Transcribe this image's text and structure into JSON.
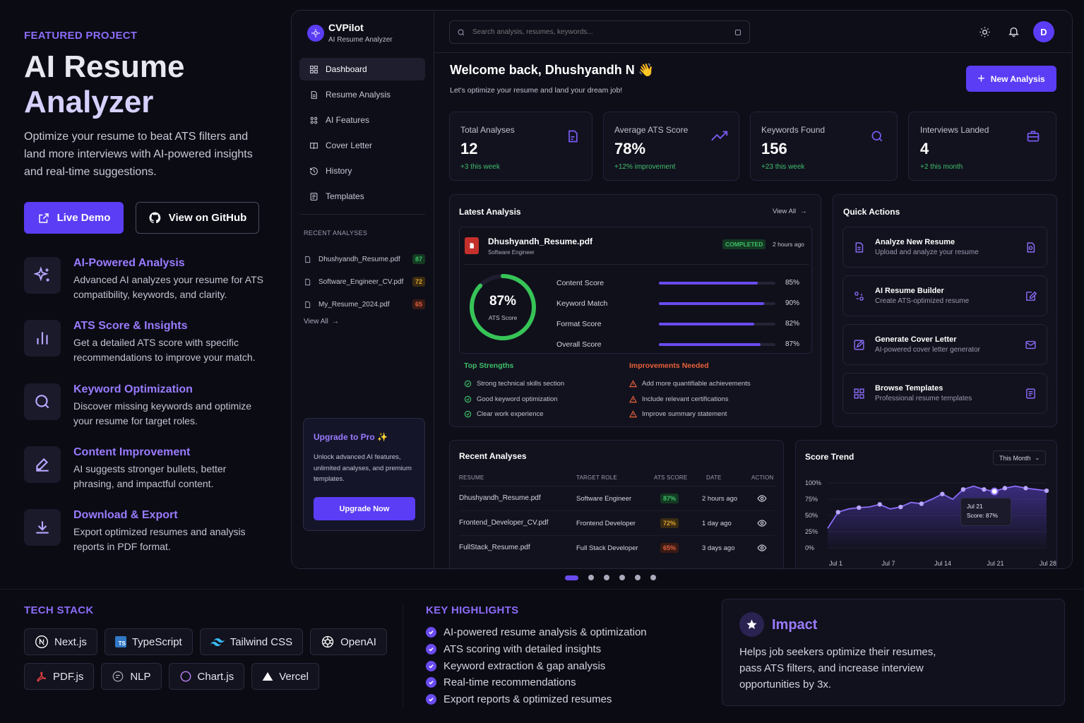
{
  "left": {
    "eyebrow": "FEATURED PROJECT",
    "title_line1": "AI Resume",
    "title_line2": "Analyzer",
    "description": "Optimize your resume to beat ATS filters and land more interviews with AI-powered insights and real-time suggestions.",
    "live_demo": "Live Demo",
    "github": "View on GitHub",
    "features": [
      {
        "title": "AI-Powered Analysis",
        "desc": "Advanced AI analyzes your resume for ATS compatibility, keywords, and clarity.",
        "icon": "sparkles-icon"
      },
      {
        "title": "ATS Score & Insights",
        "desc": "Get a detailed ATS score with specific recommendations to improve your match.",
        "icon": "bar-chart-icon"
      },
      {
        "title": "Keyword Optimization",
        "desc": "Discover missing keywords and optimize your resume for target roles.",
        "icon": "search-icon"
      },
      {
        "title": "Content Improvement",
        "desc": "AI suggests stronger bullets, better phrasing, and impactful content.",
        "icon": "pencil-icon"
      },
      {
        "title": "Download & Export",
        "desc": "Export optimized resumes and analysis reports in PDF format.",
        "icon": "download-icon"
      }
    ]
  },
  "app": {
    "brand": "CVPilot",
    "brand_sub": "AI Resume Analyzer",
    "search_placeholder": "Search analysis, resumes, keywords...",
    "avatar": "D",
    "nav": [
      {
        "label": "Dashboard",
        "icon": "grid-icon"
      },
      {
        "label": "Resume Analysis",
        "icon": "document-icon"
      },
      {
        "label": "AI Features",
        "icon": "ai-icon"
      },
      {
        "label": "Cover Letter",
        "icon": "book-icon"
      },
      {
        "label": "History",
        "icon": "history-icon"
      },
      {
        "label": "Templates",
        "icon": "template-icon"
      }
    ],
    "recent_title": "RECENT ANALYSES",
    "recent": [
      {
        "name": "Dhushyandh_Resume.pdf",
        "score": "87",
        "color": "#3fbf6a"
      },
      {
        "name": "Software_Engineer_CV.pdf",
        "score": "72",
        "color": "#e0a030"
      },
      {
        "name": "My_Resume_2024.pdf",
        "score": "65",
        "color": "#e06040"
      }
    ],
    "view_all": "View All",
    "upgrade_title": "Upgrade to Pro ✨",
    "upgrade_desc": "Unlock advanced AI features, unlimited analyses, and premium templates.",
    "upgrade_btn": "Upgrade Now",
    "welcome": "Welcome back, Dhushyandh N 👋",
    "welcome_sub": "Let's optimize your resume and land your dream job!",
    "new_analysis": "New Analysis",
    "kpis": [
      {
        "label": "Total Analyses",
        "value": "12",
        "delta": "+3 this week",
        "icon": "file-icon"
      },
      {
        "label": "Average ATS Score",
        "value": "78%",
        "delta": "+12% improvement",
        "icon": "trend-up-icon"
      },
      {
        "label": "Keywords Found",
        "value": "156",
        "delta": "+23 this week",
        "icon": "search-icon"
      },
      {
        "label": "Interviews Landed",
        "value": "4",
        "delta": "+2 this month",
        "icon": "briefcase-icon"
      }
    ],
    "latest": {
      "title": "Latest Analysis",
      "view_all": "View All",
      "file": "Dhushyandh_Resume.pdf",
      "role": "Software Engineer",
      "status": "COMPLETED",
      "time": "2 hours ago",
      "score": "87%",
      "score_label": "ATS Score",
      "score_value": 0.87,
      "metrics": [
        {
          "label": "Content Score",
          "value": "85%",
          "pct": 85
        },
        {
          "label": "Keyword Match",
          "value": "90%",
          "pct": 90
        },
        {
          "label": "Format Score",
          "value": "82%",
          "pct": 82
        },
        {
          "label": "Overall Score",
          "value": "87%",
          "pct": 87
        }
      ],
      "strengths_title": "Top Strengths",
      "strengths": [
        "Strong technical skills section",
        "Good keyword optimization",
        "Clear work experience"
      ],
      "improve_title": "Improvements Needed",
      "improvements": [
        "Add more quantifiable achievements",
        "Include relevant certifications",
        "Improve summary statement"
      ]
    },
    "quick": {
      "title": "Quick Actions",
      "items": [
        {
          "title": "Analyze New Resume",
          "sub": "Upload and analyze your resume"
        },
        {
          "title": "AI Resume Builder",
          "sub": "Create ATS-optimized resume"
        },
        {
          "title": "Generate Cover Letter",
          "sub": "AI-powered cover letter generator"
        },
        {
          "title": "Browse Templates",
          "sub": "Professional resume templates"
        }
      ]
    },
    "table": {
      "title": "Recent Analyses",
      "headers": [
        "RESUME",
        "TARGET ROLE",
        "ATS SCORE",
        "DATE",
        "ACTION"
      ],
      "rows": [
        {
          "resume": "Dhushyandh_Resume.pdf",
          "role": "Software Engineer",
          "score": "87%",
          "date": "2 hours ago",
          "color": "#3fbf6a",
          "bg": "#143a22"
        },
        {
          "resume": "Frontend_Developer_CV.pdf",
          "role": "Frontend Developer",
          "score": "72%",
          "date": "1 day ago",
          "color": "#e0a030",
          "bg": "#3a2c12"
        },
        {
          "resume": "FullStack_Resume.pdf",
          "role": "Full Stack Developer",
          "score": "65%",
          "date": "3 days ago",
          "color": "#e06040",
          "bg": "#3a1a14"
        }
      ]
    },
    "trend": {
      "title": "Score Trend",
      "range": "This Month",
      "tooltip_date": "Jul 21",
      "tooltip_score": "Score: 87%"
    }
  },
  "chart_data": {
    "type": "area",
    "title": "Score Trend",
    "y_ticks": [
      "100%",
      "75%",
      "50%",
      "25%",
      "0%"
    ],
    "x_ticks": [
      "Jul 1",
      "Jul 7",
      "Jul 14",
      "Jul 21",
      "Jul 28"
    ],
    "ylim": [
      0,
      100
    ],
    "values": [
      30,
      55,
      60,
      62,
      63,
      67,
      60,
      63,
      70,
      68,
      75,
      83,
      75,
      90,
      95,
      90,
      87,
      92,
      95,
      92,
      90,
      88
    ],
    "highlight": {
      "label": "Jul 21",
      "value": 87
    }
  },
  "carousel": {
    "count": 6,
    "active": 0
  },
  "bottom": {
    "tech_title": "TECH STACK",
    "tech": [
      {
        "name": "Next.js",
        "icon": "nextjs-icon"
      },
      {
        "name": "TypeScript",
        "icon": "typescript-icon"
      },
      {
        "name": "Tailwind CSS",
        "icon": "tailwind-icon"
      },
      {
        "name": "OpenAI",
        "icon": "openai-icon"
      },
      {
        "name": "PDF.js",
        "icon": "pdfjs-icon"
      },
      {
        "name": "NLP",
        "icon": "nlp-icon"
      },
      {
        "name": "Chart.js",
        "icon": "chartjs-icon"
      },
      {
        "name": "Vercel",
        "icon": "vercel-icon"
      }
    ],
    "highlights_title": "KEY HIGHLIGHTS",
    "highlights": [
      "AI-powered resume analysis & optimization",
      "ATS scoring with detailed insights",
      "Keyword extraction & gap analysis",
      "Real-time recommendations",
      "Export reports & optimized resumes"
    ],
    "impact_title": "Impact",
    "impact_desc": "Helps job seekers optimize their resumes, pass ATS filters, and increase interview opportunities by 3x."
  }
}
